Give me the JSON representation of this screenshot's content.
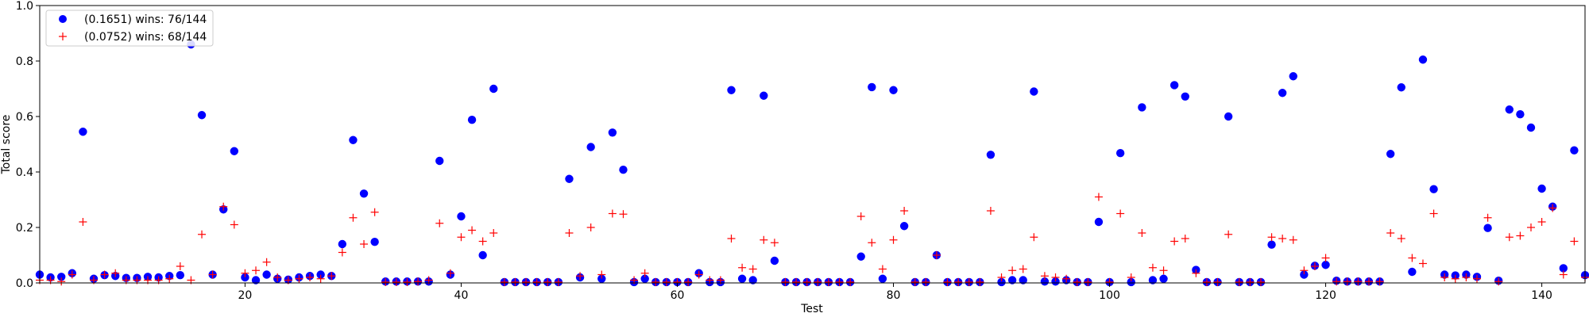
{
  "chart_data": {
    "type": "scatter",
    "title": "",
    "xlabel": "Test",
    "ylabel": "Total score",
    "xlim": [
      1,
      144
    ],
    "ylim": [
      0,
      1.0
    ],
    "x_ticks": [
      20,
      40,
      60,
      80,
      100,
      120,
      140
    ],
    "y_ticks": [
      0.0,
      0.2,
      0.4,
      0.6,
      0.8,
      1.0
    ],
    "x_tick_labels": [
      "20",
      "40",
      "60",
      "80",
      "100",
      "120",
      "140"
    ],
    "y_tick_labels": [
      "0.0",
      "0.2",
      "0.4",
      "0.6",
      "0.8",
      "1.0"
    ],
    "grid": false,
    "legend_position": "top-left",
    "series": [
      {
        "name": "(0.1651) wins: 76/144",
        "marker": "circle",
        "color": "#0000ff",
        "x": [
          1,
          2,
          3,
          4,
          5,
          6,
          7,
          8,
          9,
          10,
          11,
          12,
          13,
          14,
          15,
          16,
          17,
          18,
          19,
          20,
          21,
          22,
          23,
          24,
          25,
          26,
          27,
          28,
          29,
          30,
          31,
          32,
          33,
          34,
          35,
          36,
          37,
          38,
          39,
          40,
          41,
          42,
          43,
          44,
          45,
          46,
          47,
          48,
          49,
          50,
          51,
          52,
          53,
          54,
          55,
          56,
          57,
          58,
          59,
          60,
          61,
          62,
          63,
          64,
          65,
          66,
          67,
          68,
          69,
          70,
          71,
          72,
          73,
          74,
          75,
          76,
          77,
          78,
          79,
          80,
          81,
          82,
          83,
          84,
          85,
          86,
          87,
          88,
          89,
          90,
          91,
          92,
          93,
          94,
          95,
          96,
          97,
          98,
          99,
          100,
          101,
          102,
          103,
          104,
          105,
          106,
          107,
          108,
          109,
          110,
          111,
          112,
          113,
          114,
          115,
          116,
          117,
          118,
          119,
          120,
          121,
          122,
          123,
          124,
          125,
          126,
          127,
          128,
          129,
          130,
          131,
          132,
          133,
          134,
          135,
          136,
          137,
          138,
          139,
          140,
          141,
          142,
          143,
          144
        ],
        "values": [
          0.03,
          0.02,
          0.022,
          0.035,
          0.545,
          0.015,
          0.028,
          0.025,
          0.018,
          0.018,
          0.022,
          0.02,
          0.025,
          0.028,
          0.86,
          0.605,
          0.03,
          0.265,
          0.475,
          0.02,
          0.01,
          0.03,
          0.015,
          0.012,
          0.02,
          0.025,
          0.03,
          0.025,
          0.14,
          0.515,
          0.322,
          0.148,
          0.005,
          0.005,
          0.005,
          0.005,
          0.005,
          0.44,
          0.03,
          0.24,
          0.588,
          0.1,
          0.7,
          0.003,
          0.003,
          0.003,
          0.003,
          0.003,
          0.003,
          0.375,
          0.02,
          0.49,
          0.015,
          0.542,
          0.408,
          0.003,
          0.015,
          0.003,
          0.003,
          0.003,
          0.003,
          0.035,
          0.003,
          0.003,
          0.695,
          0.015,
          0.01,
          0.675,
          0.08,
          0.003,
          0.003,
          0.003,
          0.003,
          0.003,
          0.003,
          0.003,
          0.095,
          0.706,
          0.015,
          0.695,
          0.205,
          0.003,
          0.003,
          0.1,
          0.003,
          0.003,
          0.003,
          0.003,
          0.462,
          0.003,
          0.01,
          0.01,
          0.69,
          0.005,
          0.005,
          0.01,
          0.003,
          0.003,
          0.22,
          0.003,
          0.468,
          0.003,
          0.633,
          0.01,
          0.015,
          0.713,
          0.672,
          0.047,
          0.003,
          0.003,
          0.6,
          0.003,
          0.003,
          0.003,
          0.138,
          0.685,
          0.745,
          0.03,
          0.062,
          0.065,
          0.008,
          0.005,
          0.005,
          0.005,
          0.005,
          0.465,
          0.705,
          0.04,
          0.805,
          0.338,
          0.03,
          0.027,
          0.03,
          0.022,
          0.198,
          0.008,
          0.625,
          0.608,
          0.56,
          0.34,
          0.275,
          0.053,
          0.478,
          0.028
        ]
      },
      {
        "name": "(0.0752) wins: 68/144",
        "marker": "plus",
        "color": "#ff0000",
        "x": [
          1,
          2,
          3,
          4,
          5,
          6,
          7,
          8,
          9,
          10,
          11,
          12,
          13,
          14,
          15,
          16,
          17,
          18,
          19,
          20,
          21,
          22,
          23,
          24,
          25,
          26,
          27,
          28,
          29,
          30,
          31,
          32,
          33,
          34,
          35,
          36,
          37,
          38,
          39,
          40,
          41,
          42,
          43,
          44,
          45,
          46,
          47,
          48,
          49,
          50,
          51,
          52,
          53,
          54,
          55,
          56,
          57,
          58,
          59,
          60,
          61,
          62,
          63,
          64,
          65,
          66,
          67,
          68,
          69,
          70,
          71,
          72,
          73,
          74,
          75,
          76,
          77,
          78,
          79,
          80,
          81,
          82,
          83,
          84,
          85,
          86,
          87,
          88,
          89,
          90,
          91,
          92,
          93,
          94,
          95,
          96,
          97,
          98,
          99,
          100,
          101,
          102,
          103,
          104,
          105,
          106,
          107,
          108,
          109,
          110,
          111,
          112,
          113,
          114,
          115,
          116,
          117,
          118,
          119,
          120,
          121,
          122,
          123,
          124,
          125,
          126,
          127,
          128,
          129,
          130,
          131,
          132,
          133,
          134,
          135,
          136,
          137,
          138,
          139,
          140,
          141,
          142,
          143,
          144
        ],
        "values": [
          0.01,
          0.01,
          0.005,
          0.03,
          0.22,
          0.01,
          0.03,
          0.035,
          0.01,
          0.01,
          0.01,
          0.01,
          0.015,
          0.06,
          0.01,
          0.175,
          0.03,
          0.275,
          0.21,
          0.035,
          0.045,
          0.075,
          0.02,
          0.01,
          0.015,
          0.02,
          0.015,
          0.025,
          0.11,
          0.235,
          0.14,
          0.255,
          0.003,
          0.003,
          0.003,
          0.005,
          0.01,
          0.215,
          0.035,
          0.165,
          0.19,
          0.15,
          0.18,
          0.003,
          0.003,
          0.003,
          0.003,
          0.003,
          0.003,
          0.18,
          0.025,
          0.2,
          0.03,
          0.25,
          0.248,
          0.01,
          0.035,
          0.003,
          0.003,
          0.003,
          0.003,
          0.03,
          0.01,
          0.01,
          0.16,
          0.055,
          0.05,
          0.155,
          0.145,
          0.003,
          0.003,
          0.003,
          0.003,
          0.003,
          0.003,
          0.003,
          0.24,
          0.145,
          0.05,
          0.155,
          0.26,
          0.003,
          0.003,
          0.1,
          0.003,
          0.003,
          0.003,
          0.003,
          0.26,
          0.02,
          0.045,
          0.05,
          0.165,
          0.025,
          0.02,
          0.015,
          0.003,
          0.003,
          0.31,
          0.003,
          0.25,
          0.02,
          0.18,
          0.055,
          0.045,
          0.15,
          0.16,
          0.035,
          0.003,
          0.003,
          0.175,
          0.003,
          0.003,
          0.003,
          0.165,
          0.16,
          0.155,
          0.045,
          0.06,
          0.09,
          0.005,
          0.005,
          0.005,
          0.005,
          0.005,
          0.18,
          0.16,
          0.09,
          0.07,
          0.25,
          0.02,
          0.015,
          0.02,
          0.015,
          0.235,
          0.005,
          0.165,
          0.17,
          0.2,
          0.22,
          0.27,
          0.03,
          0.15,
          0.02
        ]
      }
    ]
  }
}
